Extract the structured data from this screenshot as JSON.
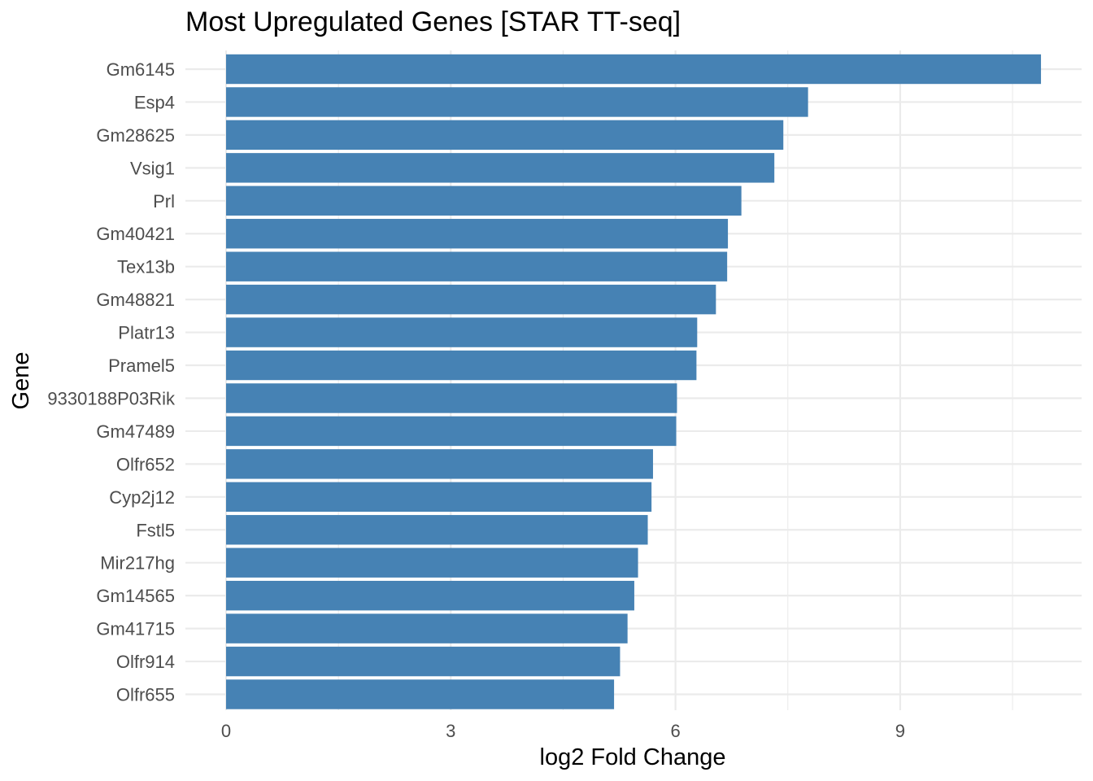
{
  "chart_data": {
    "type": "bar",
    "orientation": "horizontal",
    "title": "Most Upregulated Genes [STAR TT-seq]",
    "xlabel": "log2 Fold Change",
    "ylabel": "Gene",
    "xlim": [
      0,
      11.43
    ],
    "xticks": [
      0,
      3,
      6,
      9
    ],
    "grid": true,
    "bar_color": "#4682B4",
    "categories": [
      "Gm6145",
      "Esp4",
      "Gm28625",
      "Vsig1",
      "Prl",
      "Gm40421",
      "Tex13b",
      "Gm48821",
      "Platr13",
      "Pramel5",
      "9330188P03Rik",
      "Gm47489",
      "Olfr652",
      "Cyp2j12",
      "Fstl5",
      "Mir217hg",
      "Gm14565",
      "Gm41715",
      "Olfr914",
      "Olfr655"
    ],
    "values": [
      10.88,
      7.77,
      7.44,
      7.32,
      6.88,
      6.7,
      6.69,
      6.54,
      6.29,
      6.28,
      6.02,
      6.01,
      5.7,
      5.68,
      5.63,
      5.5,
      5.45,
      5.36,
      5.26,
      5.18
    ]
  }
}
